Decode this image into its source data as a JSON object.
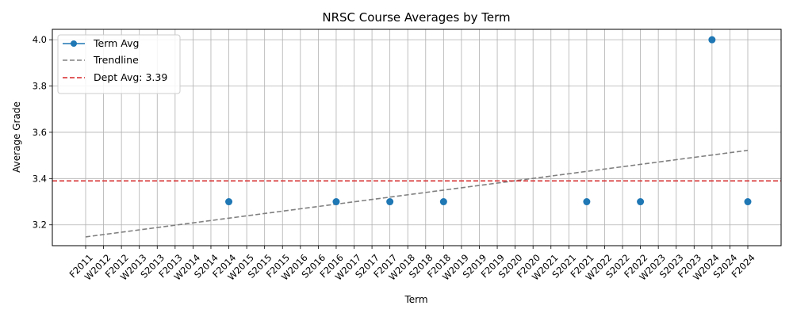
{
  "chart_data": {
    "type": "line",
    "title": "NRSC Course Averages by Term",
    "xlabel": "Term",
    "ylabel": "Average Grade",
    "categories": [
      "F2011",
      "W2012",
      "F2012",
      "W2013",
      "S2013",
      "F2013",
      "W2014",
      "S2014",
      "F2014",
      "W2015",
      "S2015",
      "F2015",
      "W2016",
      "S2016",
      "F2016",
      "W2017",
      "S2017",
      "F2017",
      "W2018",
      "S2018",
      "F2018",
      "W2019",
      "S2019",
      "F2019",
      "S2020",
      "F2020",
      "W2021",
      "S2021",
      "F2021",
      "W2022",
      "S2022",
      "F2022",
      "W2023",
      "S2023",
      "F2023",
      "W2024",
      "S2024",
      "F2024"
    ],
    "ylim": [
      3.11,
      4.045
    ],
    "yticks": [
      3.2,
      3.4,
      3.6,
      3.8,
      4.0
    ],
    "ytick_labels": [
      "3.2",
      "3.4",
      "3.6",
      "3.8",
      "4.0"
    ],
    "grid": true,
    "legend_position": "top-left",
    "series": [
      {
        "name": "Term Avg",
        "color": "#1f77b4",
        "marker": "circle",
        "points": [
          {
            "x": "F2014",
            "y": 3.3
          },
          {
            "x": "F2016",
            "y": 3.3
          },
          {
            "x": "F2017",
            "y": 3.3
          },
          {
            "x": "F2018",
            "y": 3.3
          },
          {
            "x": "F2021",
            "y": 3.3
          },
          {
            "x": "F2022",
            "y": 3.3
          },
          {
            "x": "W2024",
            "y": 4.0
          },
          {
            "x": "F2024",
            "y": 3.3
          }
        ]
      },
      {
        "name": "Trendline",
        "color": "#808080",
        "style": "dashed",
        "start": {
          "x": "F2011",
          "y": 3.148
        },
        "end": {
          "x": "F2024",
          "y": 3.522
        }
      },
      {
        "name": "Dept Avg: 3.39",
        "color": "#d62728",
        "style": "dashed",
        "y": 3.39
      }
    ]
  }
}
